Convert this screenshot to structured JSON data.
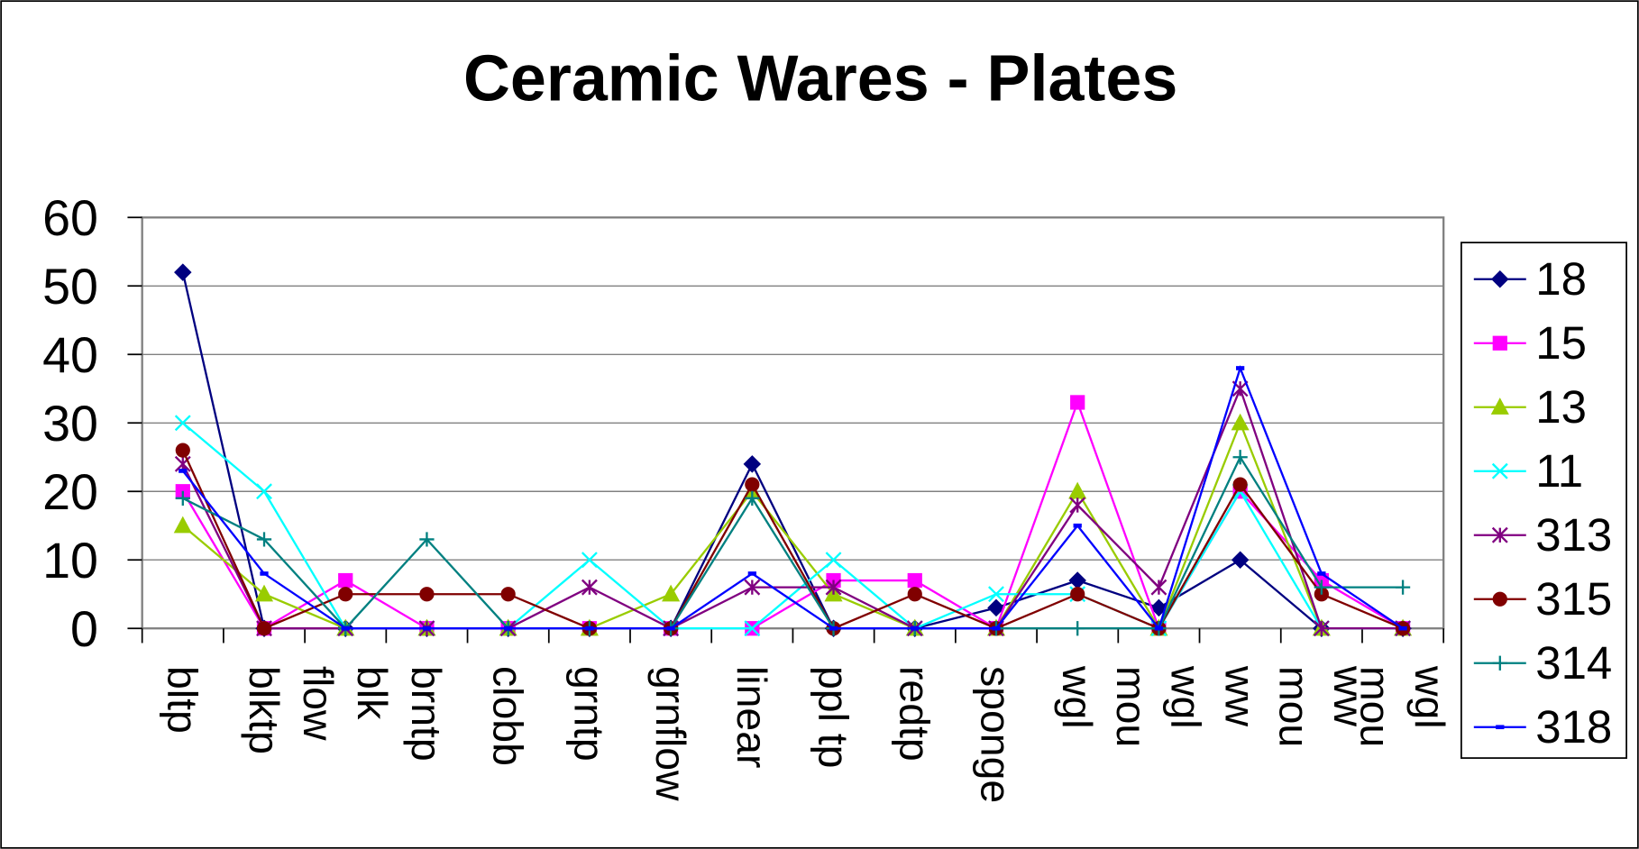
{
  "chart_data": {
    "type": "line",
    "title": "Ceramic Wares - Plates",
    "categories": [
      "bltp",
      "blktp",
      "flow\nblk",
      "brntp",
      "clobb",
      "grntp",
      "grnflow",
      "linear",
      "ppl tp",
      "redtp",
      "sponge",
      "wgl",
      "mou\nwgl",
      "ww",
      "mou\nww",
      "mou\nwgl"
    ],
    "series": [
      {
        "name": "18",
        "color": "#000080",
        "marker": "diamond",
        "values": [
          52,
          0,
          0,
          0,
          0,
          0,
          0,
          24,
          0,
          0,
          3,
          7,
          3,
          10,
          0,
          0
        ]
      },
      {
        "name": "15",
        "color": "#FF00FF",
        "marker": "square",
        "values": [
          20,
          0,
          7,
          0,
          0,
          0,
          0,
          0,
          7,
          7,
          0,
          33,
          0,
          20,
          7,
          0
        ]
      },
      {
        "name": "13",
        "color": "#99CC00",
        "marker": "triangle",
        "values": [
          15,
          5,
          0,
          0,
          0,
          0,
          5,
          20,
          5,
          0,
          0,
          20,
          0,
          30,
          0,
          0
        ]
      },
      {
        "name": "11",
        "color": "#00FFFF",
        "marker": "x",
        "values": [
          30,
          20,
          0,
          0,
          0,
          10,
          0,
          0,
          10,
          0,
          5,
          5,
          0,
          20,
          0,
          0
        ]
      },
      {
        "name": "313",
        "color": "#800080",
        "marker": "star",
        "values": [
          24,
          0,
          0,
          0,
          0,
          6,
          0,
          6,
          6,
          0,
          0,
          18,
          6,
          35,
          0,
          0
        ]
      },
      {
        "name": "315",
        "color": "#800000",
        "marker": "circle",
        "values": [
          26,
          0,
          5,
          5,
          5,
          0,
          0,
          21,
          0,
          5,
          0,
          5,
          0,
          21,
          5,
          0
        ]
      },
      {
        "name": "314",
        "color": "#008080",
        "marker": "plus",
        "values": [
          19,
          13,
          0,
          13,
          0,
          0,
          0,
          19,
          0,
          0,
          0,
          0,
          0,
          25,
          6,
          6
        ]
      },
      {
        "name": "318",
        "color": "#0000FF",
        "marker": "dash",
        "values": [
          23,
          8,
          0,
          0,
          0,
          0,
          0,
          8,
          0,
          0,
          0,
          15,
          0,
          38,
          8,
          0
        ]
      }
    ],
    "ylim": [
      0,
      60
    ],
    "yticks": [
      0,
      10,
      20,
      30,
      40,
      50,
      60
    ],
    "grid": true,
    "legend": "right"
  }
}
